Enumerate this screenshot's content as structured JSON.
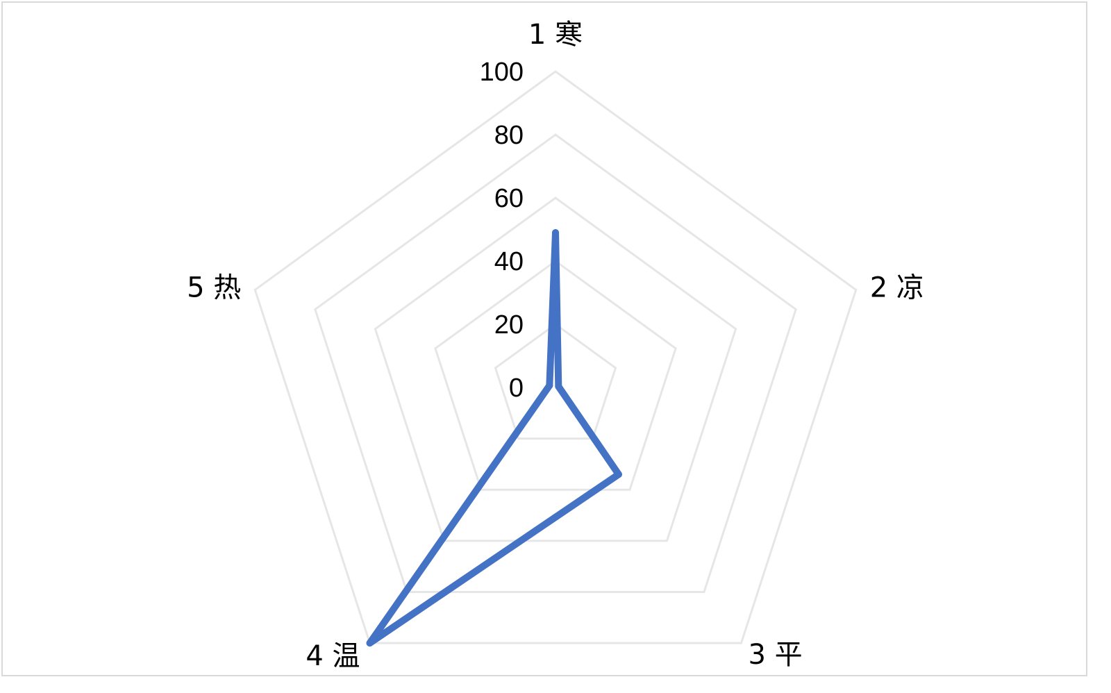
{
  "chart_data": {
    "type": "radar",
    "categories": [
      "1 寒",
      "2 凉",
      "3 平",
      "4 温",
      "5 热"
    ],
    "series": [
      {
        "values": [
          49,
          1,
          34,
          100,
          2
        ]
      }
    ],
    "rlim": [
      0,
      100
    ],
    "ticks": [
      "0",
      "20",
      "40",
      "60",
      "80",
      "100"
    ],
    "tick_values": [
      0,
      20,
      40,
      60,
      80,
      100
    ],
    "grid": true,
    "colors": {
      "series": "#4472c4",
      "grid": "#e6e6e6"
    }
  }
}
